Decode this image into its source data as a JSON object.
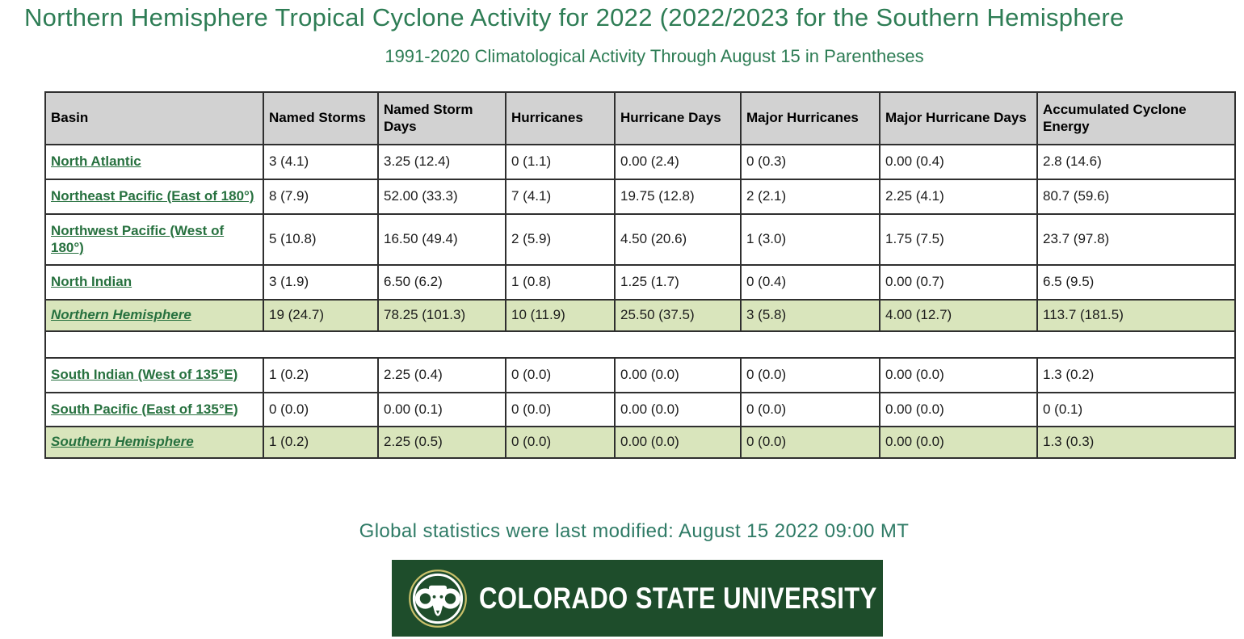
{
  "page": {
    "title": "Northern Hemisphere Tropical Cyclone Activity for 2022 (2022/2023 for the Southern Hemisphere",
    "subtitle": "1991-2020 Climatological Activity Through August 15 in Parentheses",
    "footer_note": "Global statistics were last modified: August 15 2022 09:00 MT"
  },
  "colors": {
    "heading_green": "#2e7d55",
    "footer_green": "#2f7b66",
    "link_green": "#27713f",
    "header_cell_bg": "#d2d2d2",
    "hemisphere_row_bg": "#d9e5bc",
    "table_border": "#2f2f2f",
    "banner_green": "#1E4D2B",
    "banner_gold_ring": "#c9c06a"
  },
  "table": {
    "columns": [
      "Basin",
      "Named Storms",
      "Named Storm Days",
      "Hurricanes",
      "Hurricane Days",
      "Major Hurricanes",
      "Major Hurricane Days",
      "Accumulated Cyclone Energy"
    ],
    "rows": [
      {
        "type": "basin",
        "basin": "North Atlantic",
        "values": [
          "3 (4.1)",
          "3.25 (12.4)",
          "0 (1.1)",
          "0.00 (2.4)",
          "0 (0.3)",
          "0.00 (0.4)",
          "2.8 (14.6)"
        ]
      },
      {
        "type": "basin",
        "basin": "Northeast Pacific (East of 180°)",
        "values": [
          "8 (7.9)",
          "52.00 (33.3)",
          "7 (4.1)",
          "19.75 (12.8)",
          "2 (2.1)",
          "2.25 (4.1)",
          "80.7 (59.6)"
        ]
      },
      {
        "type": "basin",
        "basin": "Northwest Pacific (West of 180°)",
        "values": [
          "5 (10.8)",
          "16.50 (49.4)",
          "2 (5.9)",
          "4.50 (20.6)",
          "1 (3.0)",
          "1.75 (7.5)",
          "23.7 (97.8)"
        ]
      },
      {
        "type": "basin",
        "basin": "North Indian",
        "values": [
          "3 (1.9)",
          "6.50 (6.2)",
          "1 (0.8)",
          "1.25 (1.7)",
          "0 (0.4)",
          "0.00 (0.7)",
          "6.5 (9.5)"
        ]
      },
      {
        "type": "hemisphere",
        "basin": "Northern Hemisphere",
        "values": [
          "19 (24.7)",
          "78.25 (101.3)",
          "10 (11.9)",
          "25.50 (37.5)",
          "3 (5.8)",
          "4.00 (12.7)",
          "113.7 (181.5)"
        ]
      },
      {
        "type": "spacer"
      },
      {
        "type": "basin",
        "basin": "South Indian (West of 135°E)",
        "values": [
          "1 (0.2)",
          "2.25 (0.4)",
          "0 (0.0)",
          "0.00 (0.0)",
          "0 (0.0)",
          "0.00 (0.0)",
          "1.3 (0.2)"
        ]
      },
      {
        "type": "basin",
        "basin": "South Pacific (East of 135°E)",
        "values": [
          "0 (0.0)",
          "0.00 (0.1)",
          "0 (0.0)",
          "0.00 (0.0)",
          "0 (0.0)",
          "0.00 (0.0)",
          "0 (0.1)"
        ]
      },
      {
        "type": "hemisphere",
        "basin": "Southern Hemisphere",
        "values": [
          "1 (0.2)",
          "2.25 (0.5)",
          "0 (0.0)",
          "0.00 (0.0)",
          "0 (0.0)",
          "0.00 (0.0)",
          "1.3 (0.3)"
        ]
      }
    ]
  },
  "logo": {
    "org": "COLORADO STATE UNIVERSITY",
    "emblem_icon": "ram-head-icon"
  }
}
